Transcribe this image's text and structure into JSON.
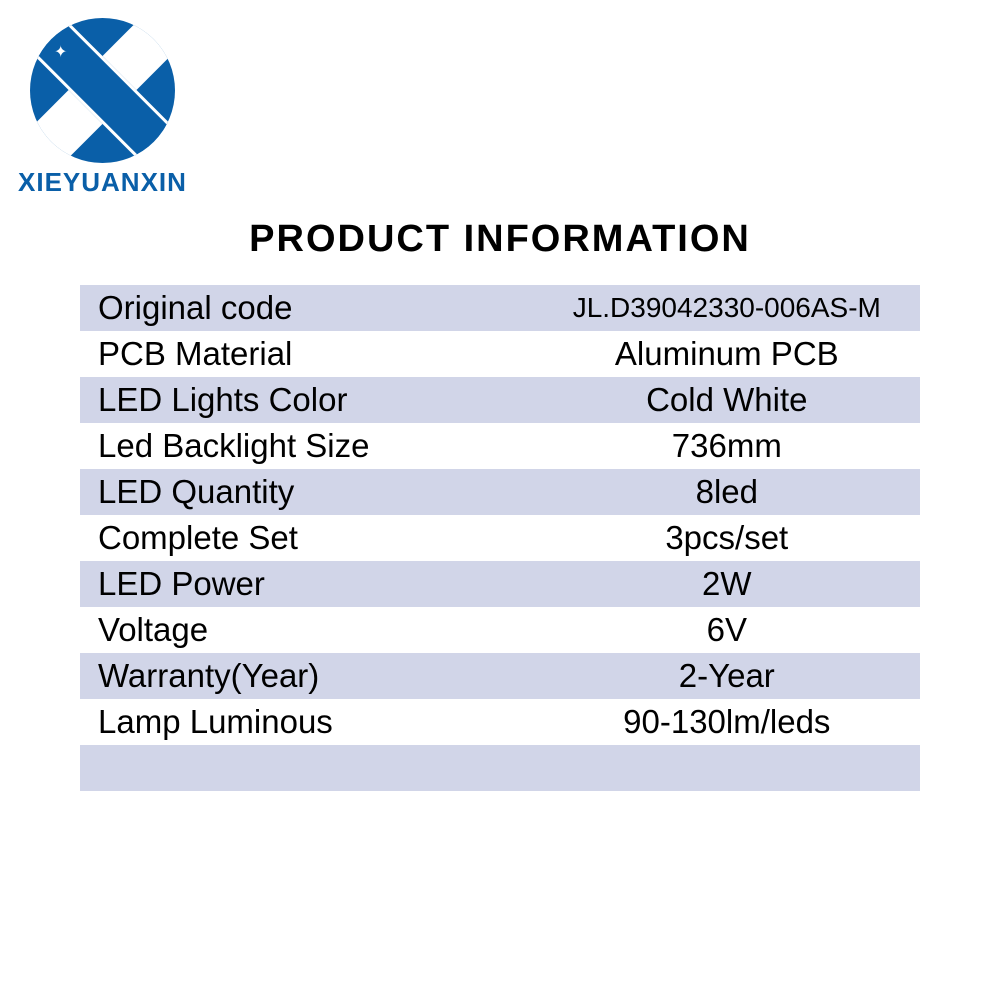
{
  "brand": {
    "name": "XIEYUANXIN",
    "logo_bg_color": "#0a5fa8",
    "logo_fg_color": "#ffffff",
    "text_color": "#0a5fa8"
  },
  "heading": {
    "text": "PRODUCT INFORMATION",
    "font_size": 38,
    "color": "#000000"
  },
  "table": {
    "stripe_color": "#d1d5e8",
    "plain_color": "#ffffff",
    "text_color": "#000000",
    "label_font_size": 33,
    "value_font_size": 33,
    "rows": [
      {
        "label": "Original code",
        "value": "JL.D39042330-006AS-M",
        "value_small": true
      },
      {
        "label": "PCB Material",
        "value": "Aluminum PCB"
      },
      {
        "label": "LED Lights Color",
        "value": "Cold White"
      },
      {
        "label": "Led Backlight Size",
        "value": "736mm"
      },
      {
        "label": "LED Quantity",
        "value": "8led"
      },
      {
        "label": "Complete Set",
        "value": "3pcs/set"
      },
      {
        "label": "LED Power",
        "value": "2W"
      },
      {
        "label": "Voltage",
        "value": "6V"
      },
      {
        "label": "Warranty(Year)",
        "value": "2-Year"
      },
      {
        "label": "Lamp Luminous",
        "value": "90-130lm/leds"
      }
    ],
    "trailing_empty_row": true
  }
}
